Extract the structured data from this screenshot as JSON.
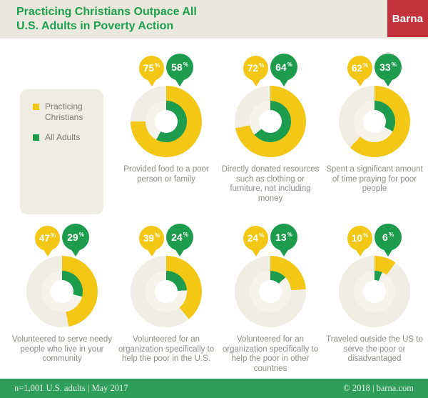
{
  "header": {
    "title_lines": [
      "Practicing Christians Outpace All",
      "U.S. Adults in Poverty Action"
    ],
    "title": "Practicing Christians Outpace All U.S. Adults in Poverty Action",
    "logo": "Barna"
  },
  "legend": {
    "items": [
      {
        "label": "Practicing Christians",
        "color": "#F3C715"
      },
      {
        "label": "All Adults",
        "color": "#1E9C4D"
      }
    ]
  },
  "chart_data": {
    "type": "pie",
    "subtype": "concentric-donut-multiples",
    "series_names": [
      "Practicing Christians",
      "All Adults"
    ],
    "unit": "%",
    "value_range": [
      0,
      100
    ],
    "colors": {
      "practicing_christians": "#F3C715",
      "all_adults": "#1E9C4D",
      "outer_track": "#F0EEE4",
      "inner_track": "#F5F3EC"
    },
    "charts": [
      {
        "caption": "Provided food to a poor person or family",
        "practicing_christians": 75,
        "all_adults": 58
      },
      {
        "caption": "Directly donated resources such as clothing or furniture, not including money",
        "practicing_christians": 72,
        "all_adults": 64
      },
      {
        "caption": "Spent a significant amount of time praying for poor people",
        "practicing_christians": 62,
        "all_adults": 33
      },
      {
        "caption": "Volunteered to serve needy people who live in your community",
        "practicing_christians": 47,
        "all_adults": 29
      },
      {
        "caption": "Volunteered for an organization specifically to help the poor in the U.S.",
        "practicing_christians": 39,
        "all_adults": 24
      },
      {
        "caption": "Volunteered for an organization specifically to help the poor in other countries",
        "practicing_christians": 24,
        "all_adults": 13
      },
      {
        "caption": "Traveled outside the US to serve the poor or disadvantaged",
        "practicing_christians": 10,
        "all_adults": 6
      }
    ]
  },
  "footer": {
    "left": "n=1,001 U.S. adults | May 2017",
    "right": "© 2018 | barna.com"
  }
}
